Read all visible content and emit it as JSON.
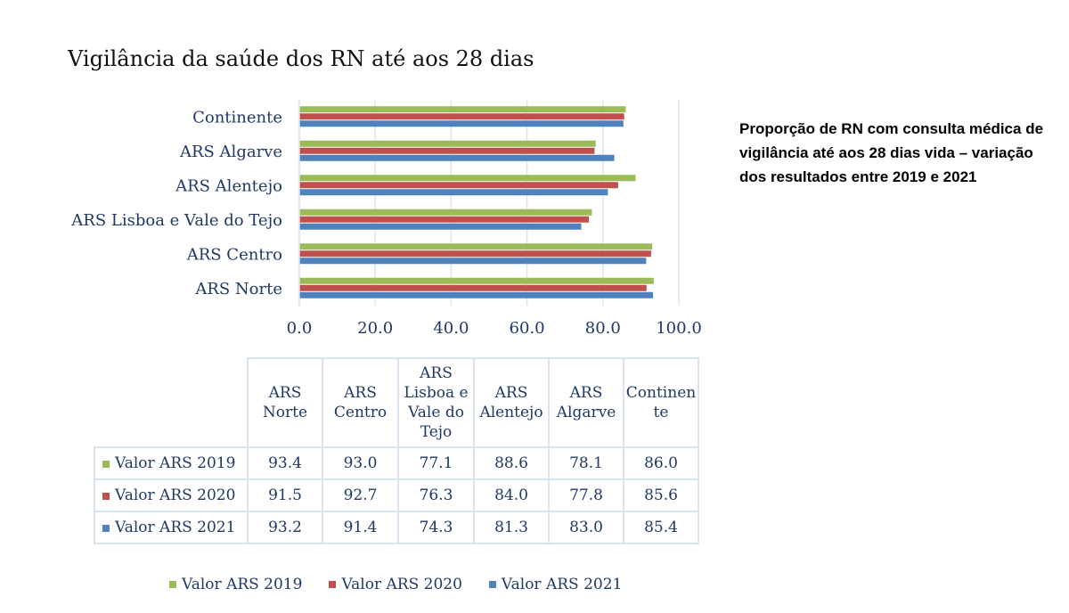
{
  "title": "Vigilância da saúde dos RN até aos 28 dias",
  "side_note": "Proporção de RN com consulta médica de vigilância até aos 28 dias vida – variação dos resultados entre 2019 e 2021",
  "colors": {
    "2019": "#9bbb59",
    "2020": "#c0504d",
    "2021": "#4f81bd"
  },
  "chart_data": {
    "type": "bar",
    "orientation": "horizontal",
    "categories": [
      "ARS Norte",
      "ARS Centro",
      "ARS Lisboa e Vale do Tejo",
      "ARS Alentejo",
      "ARS Algarve",
      "Continente"
    ],
    "series": [
      {
        "name": "Valor ARS 2019",
        "values": [
          93.4,
          93.0,
          77.1,
          88.6,
          78.1,
          86.0
        ]
      },
      {
        "name": "Valor ARS 2020",
        "values": [
          91.5,
          92.7,
          76.3,
          84.0,
          77.8,
          85.6
        ]
      },
      {
        "name": "Valor ARS 2021",
        "values": [
          93.2,
          91.4,
          74.3,
          81.3,
          83.0,
          85.4
        ]
      }
    ],
    "xlim": [
      0,
      100
    ],
    "xticks": [
      "0.0",
      "20.0",
      "40.0",
      "60.0",
      "80.0",
      "100.0"
    ],
    "grid": true,
    "legend": "bottom"
  },
  "table": {
    "headers": [
      [
        "ARS",
        "Norte"
      ],
      [
        "ARS",
        "Centro"
      ],
      [
        "ARS",
        "Lisboa e",
        "Vale do",
        "Tejo"
      ],
      [
        "ARS",
        "Alentejo"
      ],
      [
        "ARS",
        "Algarve"
      ],
      [
        "Continen",
        "te"
      ]
    ],
    "rows": [
      {
        "label": "Valor ARS 2019",
        "values": [
          "93.4",
          "93.0",
          "77.1",
          "88.6",
          "78.1",
          "86.0"
        ]
      },
      {
        "label": "Valor ARS 2020",
        "values": [
          "91.5",
          "92.7",
          "76.3",
          "84.0",
          "77.8",
          "85.6"
        ]
      },
      {
        "label": "Valor ARS 2021",
        "values": [
          "93.2",
          "91.4",
          "74.3",
          "81.3",
          "83.0",
          "85.4"
        ]
      }
    ]
  },
  "legend": [
    "Valor ARS 2019",
    "Valor ARS 2020",
    "Valor ARS 2021"
  ]
}
